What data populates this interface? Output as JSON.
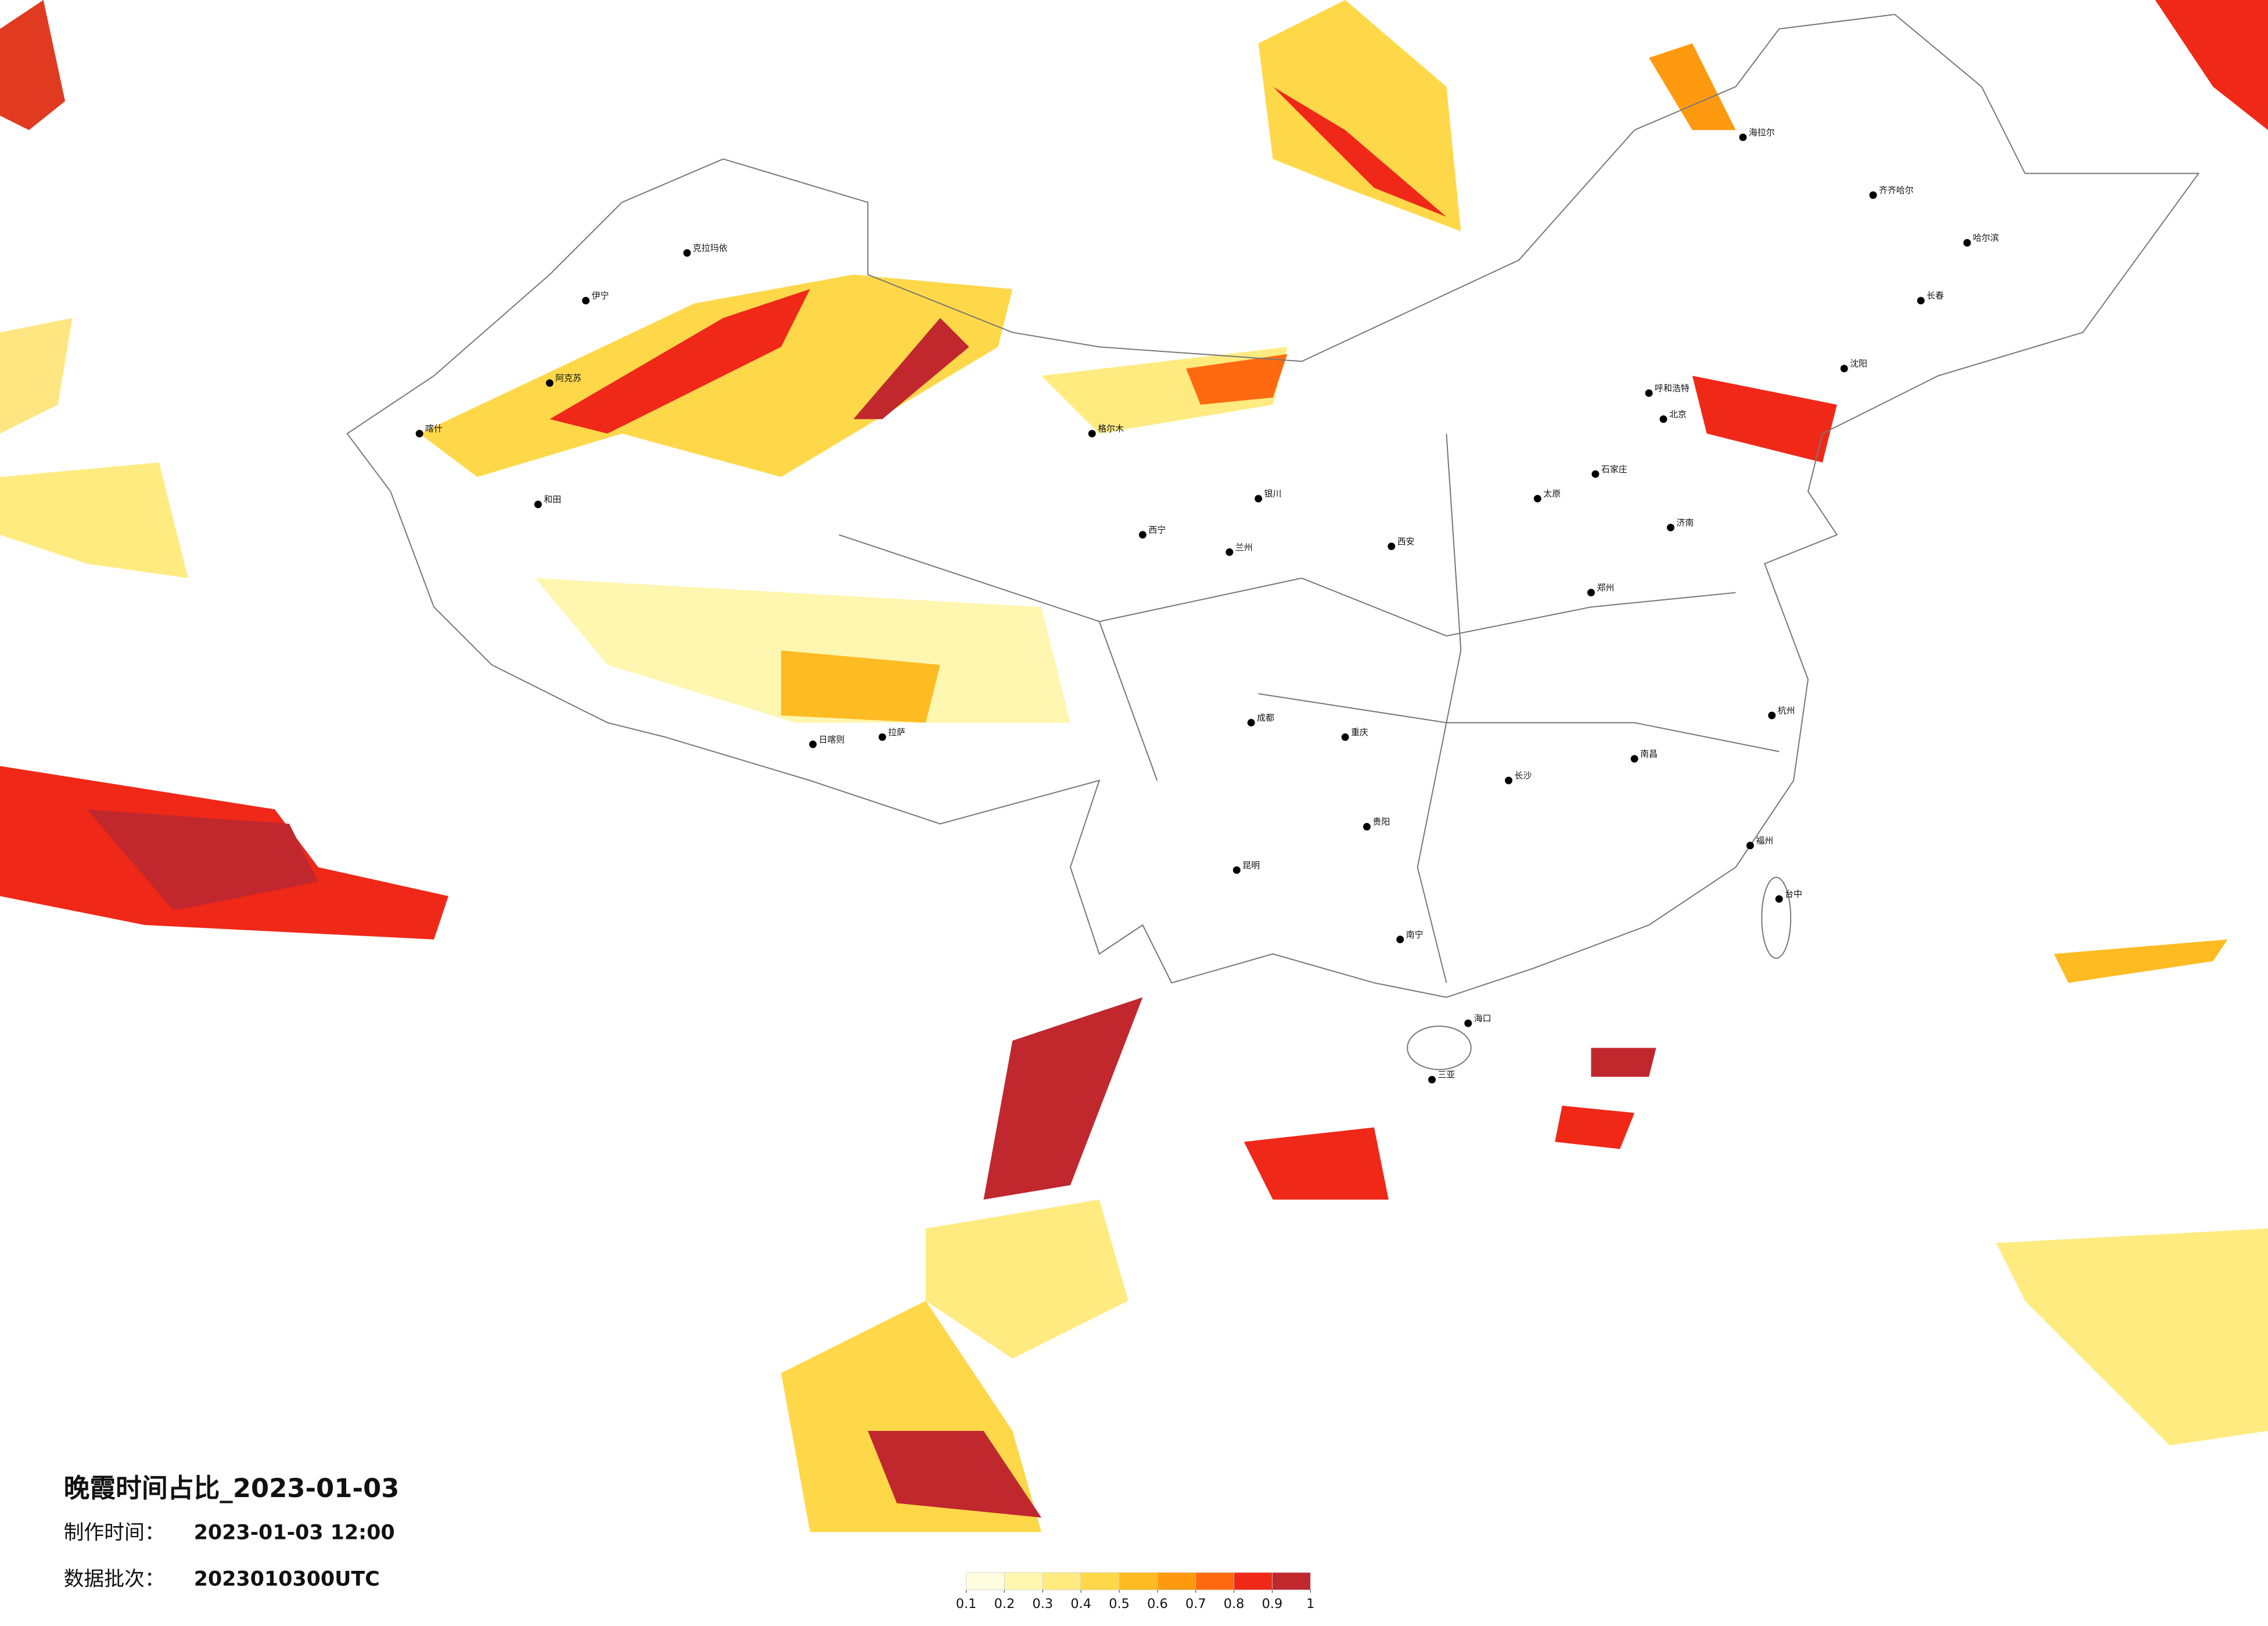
{
  "title": "晚霞时间占比_2023-01-03",
  "production_time": {
    "label": "制作时间：",
    "value": "2023-01-03 12:00"
  },
  "data_batch": {
    "label": "数据批次：",
    "value": "2023010300UTC"
  },
  "legend": {
    "colors": [
      "#fffde0",
      "#fff6b0",
      "#ffeb80",
      "#ffd84a",
      "#ffbb22",
      "#ff9a10",
      "#ff6a10",
      "#f02818",
      "#c0282e"
    ],
    "ticks": [
      0.1,
      0.2,
      0.3,
      0.4,
      0.5,
      0.6,
      0.7,
      0.8,
      0.9,
      1
    ]
  },
  "cities": [
    "克拉玛依",
    "伊宁",
    "喀什",
    "和田",
    "阿克苏",
    "日喀则",
    "拉萨",
    "海拉尔",
    "齐齐哈尔",
    "哈尔滨",
    "长春",
    "呼和浩特",
    "北京",
    "石家庄",
    "太原",
    "西安",
    "西宁",
    "银川",
    "兰州",
    "成都",
    "重庆",
    "贵阳",
    "昆明",
    "南宁",
    "海口",
    "三亚",
    "长沙",
    "南昌",
    "福州",
    "台中",
    "郑州",
    "济南",
    "沈阳",
    "杭州",
    "格尔木"
  ]
}
